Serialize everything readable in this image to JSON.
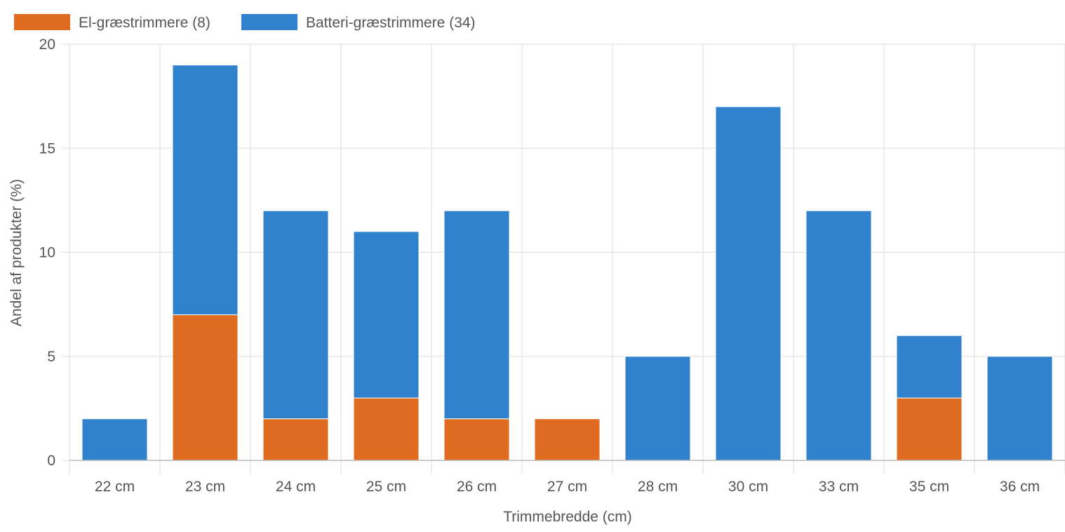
{
  "chart_data": {
    "type": "bar",
    "stacked": true,
    "categories": [
      "22 cm",
      "23 cm",
      "24 cm",
      "25 cm",
      "26 cm",
      "27 cm",
      "28 cm",
      "30 cm",
      "33 cm",
      "35 cm",
      "36 cm"
    ],
    "series": [
      {
        "name": "El-græstrimmere (8)",
        "color": "#df6c20",
        "values": [
          0,
          7,
          2,
          3,
          2,
          2,
          0,
          0,
          0,
          3,
          0
        ]
      },
      {
        "name": "Batteri-græstrimmere (34)",
        "color": "#3182cc",
        "values": [
          2,
          12,
          10,
          8,
          10,
          0,
          5,
          17,
          12,
          3,
          5
        ]
      }
    ],
    "xlabel": "Trimmebredde (cm)",
    "ylabel": "Andel af produkter (%)",
    "ylim": [
      0,
      20
    ],
    "yticks": [
      0,
      5,
      10,
      15,
      20
    ],
    "grid": true,
    "legend_position": "top-left"
  }
}
